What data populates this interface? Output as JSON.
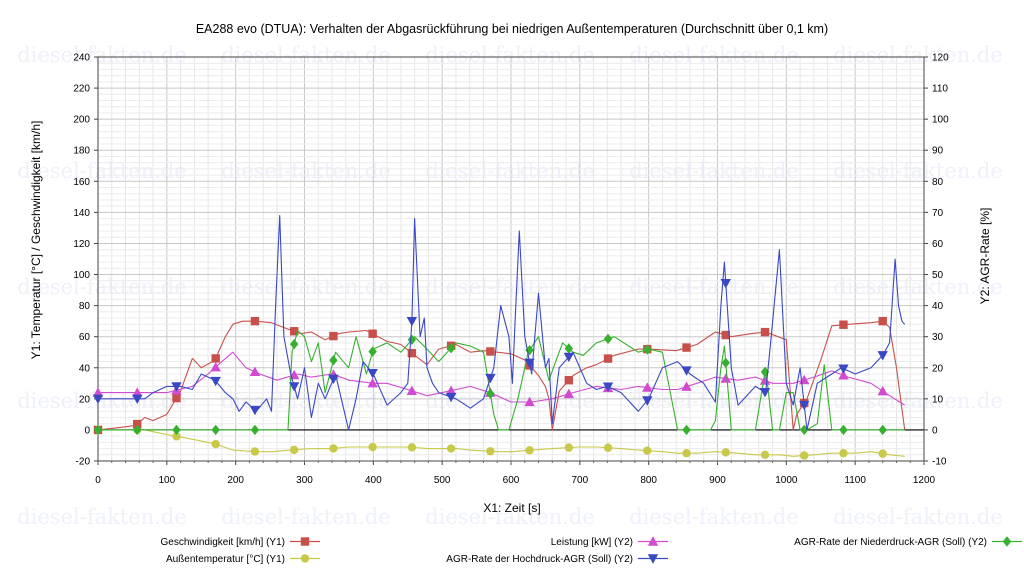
{
  "chart_data": {
    "type": "line",
    "title": "EA288 evo (DTUA): Verhalten der Abgasrückführung bei niedrigen Außentemperaturen (Durchschnitt über 0,1 km)",
    "xlabel": "X1: Zeit [s]",
    "ylabel": "Y1: Temperatur [°C] / Geschwindigkeit [km/h]",
    "y2label": "Y2: AGR-Rate [%]",
    "xlim": [
      0,
      1200
    ],
    "ylim": [
      -20,
      240
    ],
    "y2lim": [
      -10,
      120
    ],
    "x_ticks": [
      0,
      100,
      200,
      300,
      400,
      500,
      600,
      700,
      800,
      900,
      1000,
      1100,
      1200
    ],
    "y_ticks": [
      -20,
      0,
      20,
      40,
      60,
      80,
      100,
      120,
      140,
      160,
      180,
      200,
      220,
      240
    ],
    "y2_ticks": [
      -10,
      0,
      10,
      20,
      30,
      40,
      50,
      60,
      70,
      80,
      90,
      100,
      110,
      120
    ],
    "watermark": "diesel-fakten.de",
    "grid": true,
    "legend_position": "bottom",
    "series": [
      {
        "name": "Geschwindigkeit [km/h] (Y1)",
        "axis": "y1",
        "color": "#c8504b",
        "marker": "square",
        "x": [
          0,
          20,
          40,
          55,
          68,
          80,
          100,
          120,
          137,
          150,
          170,
          185,
          196,
          210,
          230,
          252,
          275,
          295,
          310,
          330,
          350,
          365,
          390,
          420,
          440,
          460,
          478,
          495,
          520,
          541,
          560,
          580,
          600,
          620,
          640,
          650,
          655,
          660,
          670,
          690,
          710,
          724,
          750,
          785,
          800,
          840,
          870,
          897,
          920,
          950,
          970,
          1000,
          1010,
          1015,
          1030,
          1050,
          1066,
          1090,
          1123,
          1140,
          1150,
          1160,
          1172
        ],
        "y": [
          0,
          1,
          2,
          3,
          8,
          6,
          10,
          25,
          46,
          40,
          45,
          60,
          68,
          70,
          70,
          69,
          65,
          62,
          63,
          58,
          62,
          63,
          64,
          57,
          55,
          48,
          42,
          52,
          55,
          50,
          51,
          50,
          49,
          45,
          35,
          28,
          20,
          0,
          25,
          35,
          40,
          42,
          48,
          52,
          52,
          51,
          55,
          63,
          60,
          62,
          63,
          58,
          0,
          10,
          20,
          45,
          67,
          68,
          69,
          70,
          66,
          40,
          0
        ]
      },
      {
        "name": "Außentemperatur [°C] (Y1)",
        "axis": "y1",
        "color": "#c8c84b",
        "marker": "circle",
        "x": [
          0,
          30,
          68,
          100,
          137,
          170,
          196,
          230,
          252,
          280,
          310,
          340,
          364,
          400,
          420,
          450,
          480,
          520,
          541,
          580,
          600,
          630,
          660,
          700,
          724,
          760,
          785,
          820,
          842,
          870,
          897,
          930,
          955,
          990,
          1010,
          1040,
          1066,
          1100,
          1123,
          1150,
          1172
        ],
        "y": [
          0,
          0,
          0,
          -3,
          -6,
          -9,
          -13,
          -14,
          -14,
          -13,
          -12,
          -12,
          -11,
          -11,
          -11,
          -11,
          -12,
          -12,
          -13,
          -14,
          -14,
          -13,
          -12,
          -11,
          -11,
          -12,
          -13,
          -14,
          -15,
          -15,
          -14,
          -15,
          -16,
          -16,
          -17,
          -16,
          -15,
          -15,
          -14,
          -16,
          -17
        ]
      },
      {
        "name": "Leistung [kW] (Y2)",
        "axis": "y2",
        "color": "#d14bd1",
        "marker": "triangle-up",
        "x": [
          0,
          30,
          68,
          100,
          137,
          160,
          180,
          196,
          215,
          235,
          260,
          290,
          310,
          340,
          365,
          400,
          420,
          450,
          478,
          500,
          541,
          570,
          600,
          630,
          660,
          690,
          724,
          760,
          785,
          820,
          842,
          870,
          897,
          930,
          955,
          980,
          1010,
          1040,
          1066,
          1090,
          1123,
          1150,
          1172
        ],
        "y": [
          12,
          12,
          12,
          12,
          14,
          18,
          22,
          25,
          20,
          18,
          16,
          18,
          17,
          18,
          16,
          15,
          15,
          13,
          11,
          12,
          14,
          12,
          9,
          9,
          10,
          12,
          14,
          13,
          14,
          13,
          13,
          15,
          17,
          16,
          17,
          15,
          15,
          17,
          19,
          17,
          15,
          11,
          8
        ]
      },
      {
        "name": "AGR-Rate der Hochdruck-AGR (Soll) (Y2)",
        "axis": "y2",
        "color": "#3b48c4",
        "marker": "triangle-down",
        "x": [
          0,
          20,
          40,
          68,
          80,
          100,
          120,
          137,
          150,
          170,
          185,
          196,
          205,
          215,
          230,
          245,
          252,
          258,
          264,
          270,
          280,
          290,
          300,
          310,
          320,
          330,
          345,
          364,
          375,
          385,
          400,
          420,
          440,
          450,
          456,
          460,
          468,
          474,
          478,
          486,
          495,
          520,
          541,
          560,
          575,
          585,
          597,
          602,
          606,
          612,
          620,
          630,
          640,
          650,
          655,
          660,
          670,
          690,
          710,
          724,
          740,
          760,
          785,
          800,
          820,
          842,
          860,
          880,
          897,
          905,
          910,
          920,
          930,
          955,
          970,
          978,
          990,
          1000,
          1010,
          1020,
          1030,
          1045,
          1066,
          1080,
          1100,
          1123,
          1140,
          1150,
          1158,
          1163,
          1168,
          1172
        ],
        "y": [
          10,
          10,
          10,
          10,
          12,
          14,
          14,
          13,
          18,
          16,
          12,
          10,
          6,
          9,
          6,
          10,
          6,
          40,
          69,
          30,
          18,
          10,
          20,
          4,
          15,
          10,
          18,
          0,
          10,
          22,
          18,
          8,
          12,
          15,
          35,
          68,
          30,
          36,
          20,
          15,
          12,
          10,
          7,
          10,
          20,
          40,
          30,
          15,
          35,
          64,
          30,
          18,
          44,
          20,
          23,
          2,
          20,
          25,
          15,
          13,
          14,
          12,
          6,
          10,
          20,
          22,
          18,
          15,
          9,
          40,
          54,
          20,
          8,
          14,
          12,
          30,
          58,
          15,
          8,
          20,
          0,
          15,
          18,
          20,
          18,
          20,
          24,
          28,
          55,
          40,
          35,
          34
        ]
      },
      {
        "name": "AGR-Rate der Niederdruck-AGR (Soll) (Y2)",
        "axis": "y2",
        "color": "#36b02f",
        "marker": "diamond",
        "x": [
          0,
          68,
          137,
          196,
          252,
          276,
          282,
          290,
          300,
          310,
          320,
          330,
          345,
          364,
          375,
          390,
          400,
          420,
          440,
          460,
          478,
          495,
          520,
          541,
          560,
          575,
          582,
          597,
          610,
          625,
          640,
          655,
          665,
          675,
          690,
          705,
          724,
          750,
          785,
          800,
          820,
          842,
          870,
          890,
          897,
          905,
          910,
          920,
          930,
          940,
          955,
          970,
          980,
          990,
          1000,
          1010,
          1020,
          1030,
          1045,
          1055,
          1066,
          1080,
          1100,
          1123,
          1150,
          1172
        ],
        "y": [
          0,
          0,
          0,
          0,
          0,
          0,
          25,
          32,
          30,
          22,
          28,
          12,
          25,
          20,
          30,
          18,
          26,
          28,
          25,
          30,
          26,
          22,
          28,
          27,
          25,
          5,
          0,
          0,
          10,
          25,
          30,
          16,
          22,
          28,
          25,
          24,
          28,
          30,
          25,
          26,
          25,
          0,
          0,
          0,
          3,
          20,
          27,
          0,
          0,
          0,
          0,
          20,
          0,
          0,
          12,
          12,
          0,
          0,
          2,
          21,
          0,
          0,
          0,
          0,
          0,
          0
        ]
      }
    ]
  },
  "legend_items": [
    "Geschwindigkeit [km/h] (Y1)",
    "Außentemperatur [°C] (Y1)",
    "Leistung [kW] (Y2)",
    "AGR-Rate der Hochdruck-AGR (Soll) (Y2)",
    "AGR-Rate der Niederdruck-AGR (Soll) (Y2)"
  ]
}
